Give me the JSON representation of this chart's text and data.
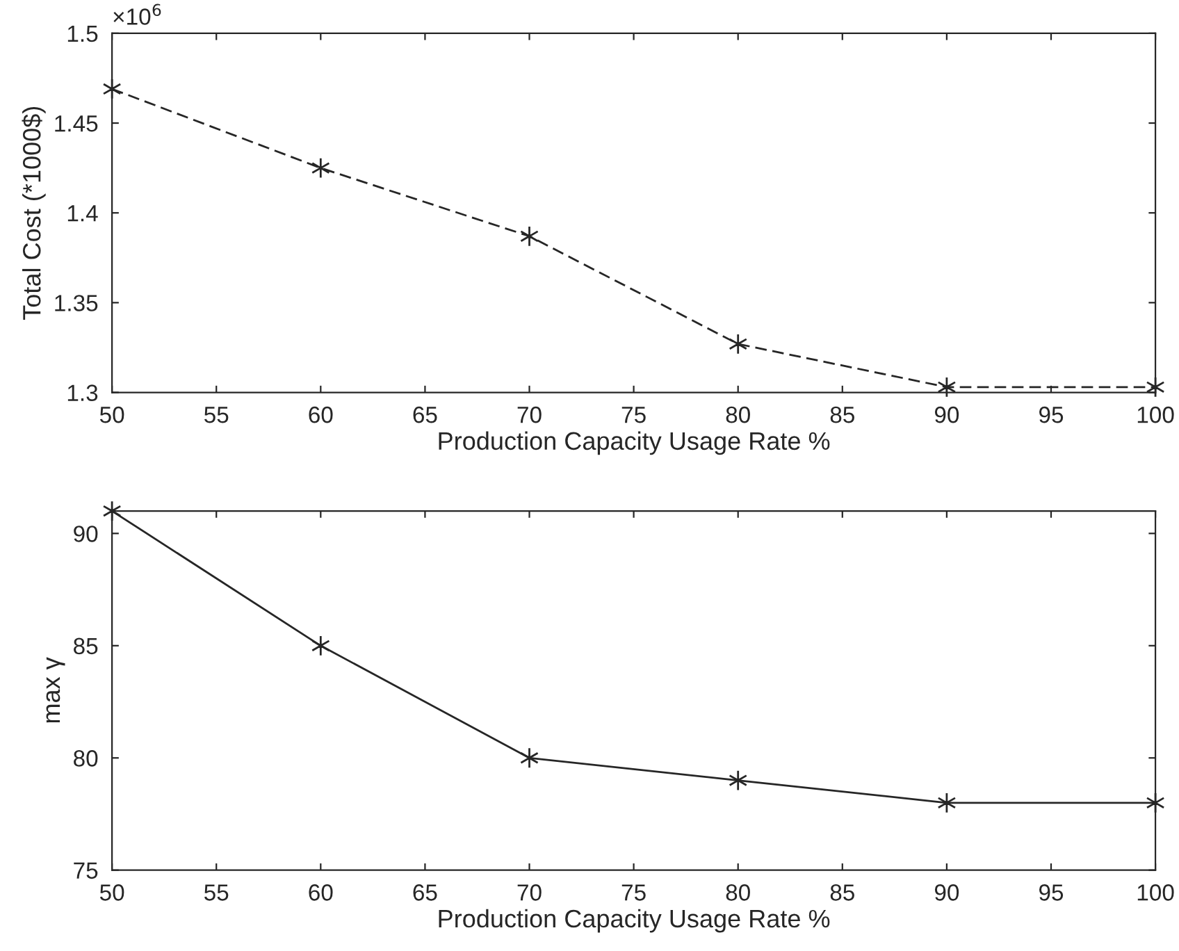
{
  "chart_data": [
    {
      "type": "line",
      "xlabel": "Production Capacity Usage Rate %",
      "ylabel": "Total Cost (*1000$)",
      "annotations": [
        "×10$^{6}$"
      ],
      "x": [
        50,
        60,
        70,
        80,
        90,
        100
      ],
      "series": [
        {
          "color": "#262626",
          "values": [
            1.469,
            1.425,
            1.387,
            1.327,
            1.303,
            1.303
          ]
        }
      ],
      "xlim": [
        50,
        100
      ],
      "xticks": [
        50,
        55,
        60,
        65,
        70,
        75,
        80,
        85,
        90,
        95,
        100
      ],
      "ylim": [
        1.3,
        1.5
      ],
      "yticks": [
        1.3,
        1.35,
        1.4,
        1.45,
        1.5
      ],
      "marker": "cross",
      "line_style": "dashed",
      "grid": false
    },
    {
      "type": "line",
      "xlabel": "Production Capacity Usage Rate %",
      "ylabel": "max γ",
      "x": [
        50,
        60,
        70,
        80,
        90,
        100
      ],
      "series": [
        {
          "color": "#262626",
          "values": [
            91,
            85,
            80,
            79,
            78,
            78
          ]
        }
      ],
      "xlim": [
        50,
        100
      ],
      "xticks": [
        50,
        55,
        60,
        65,
        70,
        75,
        80,
        85,
        90,
        95,
        100
      ],
      "ylim": [
        75,
        91
      ],
      "yticks": [
        75,
        80,
        85,
        90
      ],
      "marker": "cross",
      "line_style": "solid",
      "grid": false
    }
  ]
}
